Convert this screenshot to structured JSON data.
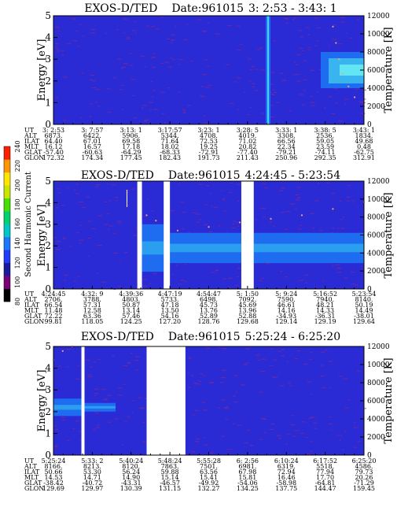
{
  "chart_data": [
    {
      "type": "heatmap",
      "title": "EXOS-D/TED",
      "date_text": "Date:961015",
      "time_range": "3: 2:53 - 3:43: 1",
      "ylabel_left": "Energy [eV]",
      "ylabel_right": "Temperature [K]",
      "y_left_ticks": [
        "0",
        "1",
        "2",
        "3",
        "4",
        "5"
      ],
      "y_right_ticks": [
        "0",
        "2000",
        "4000",
        "6000",
        "8000",
        "10000",
        "12000"
      ],
      "ylim_left": [
        0,
        5
      ],
      "ylim_right": [
        0,
        12000
      ],
      "row_labels": [
        "UT",
        "ALT",
        "ILAT",
        "MLT",
        "GLAT",
        "GLON"
      ],
      "columns": [
        [
          "3: 2:53",
          "6873.",
          "64.40",
          "16.12",
          "-57.40",
          "172.32"
        ],
        [
          "3: 7:57",
          "6422.",
          "67.01",
          "16.57",
          "-60.63",
          "174.34"
        ],
        [
          "3:13: 1",
          "5906.",
          "69.58",
          "17.18",
          "-64.29",
          "177.45"
        ],
        [
          "3:17:57",
          "5344.",
          "71.64",
          "18.02",
          "-68.33",
          "182.43"
        ],
        [
          "3:23: 1",
          "4708.",
          "72.53",
          "19.25",
          "-72.91",
          "191.73"
        ],
        [
          "3:28: 5",
          "4019.",
          "71.02",
          "20.82",
          "-77.40",
          "211.43"
        ],
        [
          "3:33: 1",
          "3308.",
          "66.56",
          "22.34",
          "-79.21",
          "250.96"
        ],
        [
          "3:38: 5",
          "2536.",
          "59.05",
          "23.59",
          "-74.11",
          "292.35"
        ],
        [
          "3:43: 1",
          "1834.",
          "49.68",
          "0.48",
          "-62.75",
          "312.91"
        ]
      ],
      "gaps": [],
      "band_segments": [],
      "temperature_trace": [
        {
          "x": 0.9,
          "y": 10800
        },
        {
          "x": 0.91,
          "y": 9000
        },
        {
          "x": 0.92,
          "y": 7200
        },
        {
          "x": 0.93,
          "y": 5600
        },
        {
          "x": 0.95,
          "y": 4200
        },
        {
          "x": 0.97,
          "y": 3000
        },
        {
          "x": 1.0,
          "y": 2000
        }
      ]
    },
    {
      "type": "heatmap",
      "title": "EXOS-D/TED",
      "date_text": "Date:961015",
      "time_range": "4:24:45 - 5:23:54",
      "ylabel_left": "Energy [eV]",
      "ylabel_right": "Temperature [K]",
      "y_left_ticks": [
        "0",
        "1",
        "2",
        "3",
        "4",
        "5"
      ],
      "y_right_ticks": [
        "0",
        "2000",
        "4000",
        "6000",
        "8000",
        "10000",
        "12000"
      ],
      "ylim_left": [
        0,
        5
      ],
      "ylim_right": [
        0,
        12000
      ],
      "row_labels": [
        "UT",
        "ALT",
        "ILAT",
        "MLT",
        "GLAT",
        "GLON"
      ],
      "columns": [
        [
          "4:24:45",
          "2706.",
          "66.54",
          "11.48",
          "72.22",
          "99.81"
        ],
        [
          "4:32: 9",
          "3788.",
          "57.31",
          "12.58",
          "63.36",
          "118.05"
        ],
        [
          "4:39:36",
          "4803.",
          "50.87",
          "13.14",
          "57.46",
          "124.25"
        ],
        [
          "4:47:19",
          "5733.",
          "47.18",
          "13.50",
          "54.16",
          "127.20"
        ],
        [
          "4:54:47",
          "6498.",
          "45.73",
          "13.76",
          "52.89",
          "128.76"
        ],
        [
          "5: 1:50",
          "7092.",
          "45.69",
          "13.96",
          "52.88",
          "129.68"
        ],
        [
          "5: 9:24",
          "7590.",
          "46.61",
          "14.16",
          "-34.93",
          "129.14"
        ],
        [
          "5:16:52",
          "7940.",
          "48.21",
          "14.33",
          "-36.31",
          "129.19"
        ],
        [
          "5:23:54",
          "8140.",
          "50.19",
          "14.49",
          "-38.01",
          "129.64"
        ]
      ],
      "gaps": [
        [
          0.27,
          0.285
        ],
        [
          0.355,
          0.375
        ],
        [
          0.605,
          0.645
        ]
      ],
      "band_segments": [
        {
          "x0": 0.285,
          "x1": 0.355,
          "y0": 0.8,
          "y1": 3.0
        },
        {
          "x0": 0.375,
          "x1": 0.605,
          "y0": 1.2,
          "y1": 2.6
        },
        {
          "x0": 0.645,
          "x1": 1.0,
          "y0": 1.2,
          "y1": 2.6
        }
      ],
      "temperature_trace": [
        {
          "x": 0.3,
          "y": 8200
        },
        {
          "x": 0.33,
          "y": 7600
        },
        {
          "x": 0.4,
          "y": 6500
        },
        {
          "x": 0.5,
          "y": 6900
        },
        {
          "x": 0.6,
          "y": 7400
        },
        {
          "x": 0.7,
          "y": 7800
        },
        {
          "x": 0.8,
          "y": 8200
        },
        {
          "x": 0.9,
          "y": 8900
        },
        {
          "x": 1.0,
          "y": 9700
        }
      ]
    },
    {
      "type": "heatmap",
      "title": "EXOS-D/TED",
      "date_text": "Date:961015",
      "time_range": "5:25:24 - 6:25:20",
      "ylabel_left": "Energy [eV]",
      "ylabel_right": "Temperature [K]",
      "y_left_ticks": [
        "0",
        "1",
        "2",
        "3",
        "4",
        "5"
      ],
      "y_right_ticks": [
        "0",
        "2000",
        "4000",
        "6000",
        "8000",
        "10000",
        "12000"
      ],
      "ylim_left": [
        0,
        5
      ],
      "ylim_right": [
        0,
        12000
      ],
      "row_labels": [
        "UT",
        "ALT",
        "ILAT",
        "MLT",
        "GLAT",
        "GLON"
      ],
      "columns": [
        [
          "5:25:24",
          "8166.",
          "50.66",
          "14.53",
          "-38.42",
          "129.69"
        ],
        [
          "5:33: 2",
          "8213.",
          "53.30",
          "14.71",
          "-40.72",
          "129.97"
        ],
        [
          "5:40:24",
          "8120.",
          "56.24",
          "14.90",
          "-43.31",
          "130.39"
        ],
        [
          "5:48:24",
          "7863.",
          "59.88",
          "15.14",
          "-46.57",
          "131.15"
        ],
        [
          "5:55:28",
          "7501.",
          "63.56",
          "15.41",
          "-49.92",
          "132.27"
        ],
        [
          "6: 2:56",
          "6981.",
          "67.98",
          "15.81",
          "-54.06",
          "134.25"
        ],
        [
          "6:10:24",
          "6319.",
          "72.94",
          "16.46",
          "-58.98",
          "137.75"
        ],
        [
          "6:17:52",
          "5518.",
          "77.94",
          "17.70",
          "-64.81",
          "144.47"
        ],
        [
          "6:25:20",
          "4586.",
          "79.73",
          "20.26",
          "-71.29",
          "159.45"
        ]
      ],
      "gaps": [
        [
          0.09,
          0.1
        ],
        [
          0.3,
          0.425
        ]
      ],
      "band_segments": [
        {
          "x0": 0.0,
          "x1": 0.09,
          "y0": 1.8,
          "y1": 2.6
        },
        {
          "x0": 0.1,
          "x1": 0.2,
          "y0": 2.0,
          "y1": 2.4
        }
      ],
      "temperature_trace": [
        {
          "x": 0.0,
          "y": 10500
        },
        {
          "x": 0.03,
          "y": 11500
        },
        {
          "x": 0.06,
          "y": 12000
        }
      ]
    }
  ],
  "colorbar": {
    "label": "Second Harmonic Current",
    "ticks": [
      "80",
      "100",
      "120",
      "140",
      "160",
      "180",
      "200",
      "220",
      "240"
    ],
    "colors": [
      "#000000",
      "#7a007a",
      "#1a1aa0",
      "#1f3cff",
      "#1e78ff",
      "#00c8c8",
      "#00d26e",
      "#46e000",
      "#c8e600",
      "#ffe600",
      "#ff9600",
      "#ff1e00"
    ]
  },
  "colors": {
    "background": "#2b2bd6",
    "noise": "#8a2a8a",
    "band": "#1e6cf0",
    "band_core": "#36c8f0",
    "trace": "#ff9a8a"
  }
}
